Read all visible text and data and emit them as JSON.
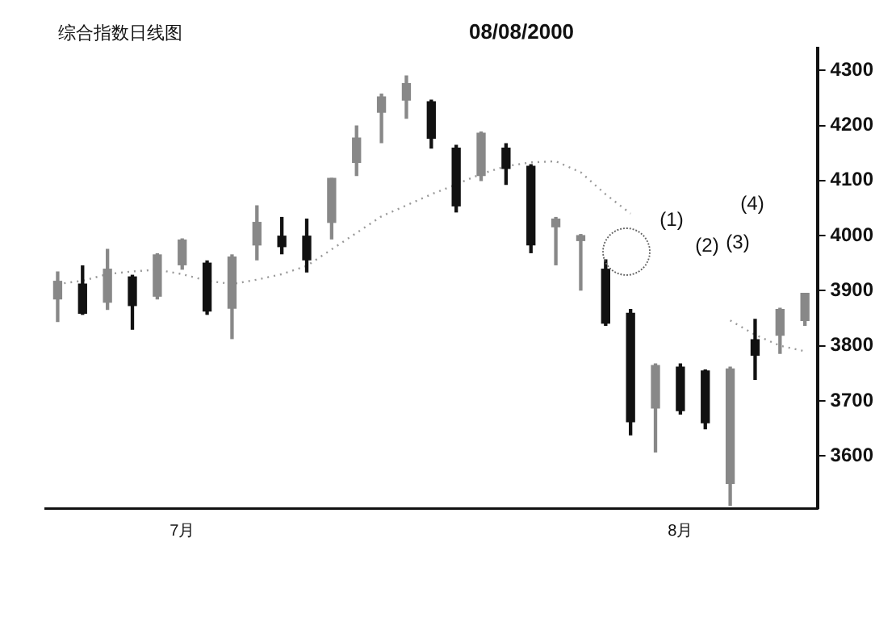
{
  "chart_data": {
    "type": "candlestick",
    "title": "综合指数日线图",
    "subtitle": "08/08/2000",
    "categories": [
      null,
      null,
      null,
      null,
      null,
      "7月",
      null,
      null,
      null,
      null,
      null,
      null,
      null,
      null,
      null,
      null,
      null,
      null,
      null,
      null,
      null,
      null,
      null,
      null,
      null,
      "8月",
      null,
      null,
      null,
      null,
      null
    ],
    "ohlc": [
      [
        3885,
        3934,
        3844,
        3917
      ],
      [
        3912,
        3945,
        3857,
        3859
      ],
      [
        3879,
        3975,
        3866,
        3939
      ],
      [
        3925,
        3928,
        3830,
        3873
      ],
      [
        3890,
        3967,
        3885,
        3965
      ],
      [
        3947,
        3994,
        3939,
        3992
      ],
      [
        3950,
        3954,
        3857,
        3863
      ],
      [
        3868,
        3965,
        3813,
        3961
      ],
      [
        3983,
        4054,
        3956,
        4024
      ],
      [
        3999,
        4033,
        3967,
        3980
      ],
      [
        3999,
        4030,
        3934,
        3956
      ],
      [
        4024,
        4104,
        3994,
        4104
      ],
      [
        4133,
        4199,
        4109,
        4177
      ],
      [
        4224,
        4257,
        4169,
        4252
      ],
      [
        4246,
        4290,
        4213,
        4276
      ],
      [
        4243,
        4246,
        4159,
        4177
      ],
      [
        4159,
        4164,
        4043,
        4054
      ],
      [
        4109,
        4188,
        4100,
        4186
      ],
      [
        4159,
        4167,
        4093,
        4122
      ],
      [
        4126,
        4129,
        3969,
        3983
      ],
      [
        4016,
        4033,
        3947,
        4030
      ],
      [
        3991,
        4002,
        3901,
        4000
      ],
      [
        3939,
        3956,
        3837,
        3841
      ],
      [
        3859,
        3866,
        3638,
        3662
      ],
      [
        3687,
        3767,
        3607,
        3764
      ],
      [
        3761,
        3767,
        3676,
        3682
      ],
      [
        3754,
        3756,
        3649,
        3660
      ],
      [
        3550,
        3761,
        3510,
        3758
      ],
      [
        3811,
        3848,
        3739,
        3783
      ],
      [
        3819,
        3868,
        3786,
        3866
      ],
      [
        3846,
        3895,
        3837,
        3895
      ]
    ],
    "colors": [
      "#888888",
      "#111111",
      "#888888",
      "#111111",
      "#888888",
      "#888888",
      "#111111",
      "#888888",
      "#888888",
      "#111111",
      "#111111",
      "#888888",
      "#888888",
      "#888888",
      "#888888",
      "#111111",
      "#111111",
      "#888888",
      "#111111",
      "#111111",
      "#888888",
      "#888888",
      "#111111",
      "#111111",
      "#888888",
      "#111111",
      "#111111",
      "#888888",
      "#111111",
      "#888888",
      "#888888"
    ],
    "series": [
      {
        "type": "line",
        "color": "#999999",
        "line_style": "dotted",
        "values": [
          3912,
          3918,
          3930,
          3935,
          3938,
          3930,
          3918,
          3912,
          3920,
          3930,
          3945,
          3975,
          4005,
          4035,
          4055,
          4075,
          4093,
          4112,
          4126,
          4133,
          4135,
          4115,
          4075,
          4040,
          null,
          null,
          null,
          3846,
          3820,
          3800,
          3790
        ]
      }
    ],
    "ylim": [
      3505,
      4340
    ],
    "yticks": [
      3600,
      3700,
      3800,
      3900,
      4000,
      4100,
      4200,
      4300
    ],
    "annotations": [
      "(1)",
      "(2)",
      "(3)",
      "(4)"
    ],
    "grid": false,
    "legend": false
  }
}
